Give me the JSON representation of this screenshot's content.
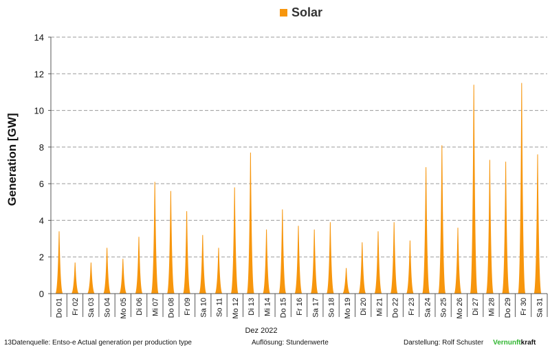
{
  "legend": {
    "label": "Solar",
    "color": "#F7960D"
  },
  "axes": {
    "ylabel": "Generation  [GW]",
    "xlabel": "Dez 2022"
  },
  "footer": {
    "source": "13Datenquelle: Entso-e  Actual generation per production type",
    "resolution_label": "Auflösung:",
    "resolution_value": "Stundenwerte",
    "author": "Darstellung:  Rolf Schuster",
    "brand_colored": "Vernunft",
    "brand_plain": "kraft",
    "brand_color": "#2FB52F"
  },
  "chart_data": {
    "type": "area",
    "xlabel": "Dez 2022",
    "ylabel": "Generation  [GW]",
    "ylim": [
      0,
      14
    ],
    "yticks": [
      0,
      2,
      4,
      6,
      8,
      10,
      12,
      14
    ],
    "grid": true,
    "legend_position": "top-center",
    "categories": [
      "Do 01",
      "Fr 02",
      "Sa 03",
      "So 04",
      "Mo 05",
      "Di 06",
      "Mi 07",
      "Do 08",
      "Fr 09",
      "Sa 10",
      "So 11",
      "Mo 12",
      "Di 13",
      "Mi 14",
      "Do 15",
      "Fr 16",
      "Sa 17",
      "So 18",
      "Mo 19",
      "Di 20",
      "Mi 21",
      "Do 22",
      "Fr 23",
      "Sa 24",
      "So 25",
      "Mo 26",
      "Di 27",
      "Mi 28",
      "Do 29",
      "Fr 30",
      "Sa 31"
    ],
    "series": [
      {
        "name": "Solar",
        "color": "#F7960D",
        "daily_peak_values": [
          3.4,
          1.7,
          1.7,
          2.5,
          1.9,
          3.1,
          6.1,
          5.6,
          4.5,
          3.2,
          2.5,
          5.8,
          7.7,
          3.5,
          4.6,
          3.7,
          3.5,
          3.9,
          1.4,
          2.8,
          3.4,
          3.9,
          2.9,
          6.9,
          8.1,
          3.6,
          11.4,
          7.3,
          7.2,
          11.5,
          7.6
        ]
      }
    ]
  }
}
